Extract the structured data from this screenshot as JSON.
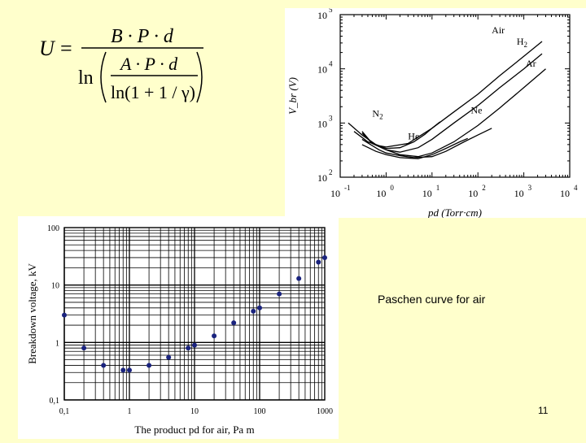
{
  "formula": {
    "lhs": "U",
    "equals": "=",
    "numerator": "B · P · d",
    "ln_outer": "ln",
    "inner_numerator": "A · P · d",
    "inner_denominator": "ln(1 + 1 / γ)"
  },
  "caption": "Paschen curve for air",
  "slide_number": "11",
  "chart_data": [
    {
      "type": "line",
      "title": "",
      "xlabel": "pd (Torr·cm)",
      "ylabel": "V_br (V)",
      "x_scale": "log",
      "y_scale": "log",
      "xlim": [
        0.1,
        10000
      ],
      "ylim": [
        100,
        100000
      ],
      "x_ticks": [
        {
          "base": "10",
          "exp": "-1"
        },
        {
          "base": "10",
          "exp": "0"
        },
        {
          "base": "10",
          "exp": "1"
        },
        {
          "base": "10",
          "exp": "2"
        },
        {
          "base": "10",
          "exp": "3"
        },
        {
          "base": "10",
          "exp": "4"
        }
      ],
      "y_ticks": [
        {
          "base": "10",
          "exp": "2"
        },
        {
          "base": "10",
          "exp": "3"
        },
        {
          "base": "10",
          "exp": "4"
        },
        {
          "base": "10",
          "exp": "5"
        }
      ],
      "series": [
        {
          "name": "Air",
          "x": [
            0.2,
            0.4,
            0.7,
            1,
            3,
            10,
            30,
            100,
            300,
            1000,
            2500
          ],
          "y": [
            700,
            450,
            380,
            360,
            420,
            800,
            1600,
            3400,
            7500,
            17000,
            32000
          ]
        },
        {
          "name": "H2",
          "x": [
            0.3,
            0.5,
            1,
            2,
            5,
            10,
            30,
            100,
            300,
            1000,
            2500
          ],
          "y": [
            700,
            420,
            320,
            290,
            350,
            500,
            1000,
            2100,
            4500,
            10000,
            19000
          ]
        },
        {
          "name": "Ar",
          "x": [
            0.3,
            0.5,
            1,
            2,
            5,
            10,
            30,
            100,
            300,
            1000,
            3000
          ],
          "y": [
            650,
            420,
            320,
            260,
            240,
            280,
            450,
            900,
            1900,
            4500,
            10000
          ]
        },
        {
          "name": "N2",
          "x": [
            0.15,
            0.3,
            0.6,
            1,
            2,
            4,
            7,
            10,
            15
          ],
          "y": [
            1000,
            600,
            400,
            340,
            350,
            450,
            620,
            800,
            1050
          ]
        },
        {
          "name": "He",
          "x": [
            0.3,
            0.6,
            1,
            2,
            5,
            10,
            20,
            40,
            60
          ],
          "y": [
            400,
            300,
            260,
            230,
            220,
            260,
            340,
            450,
            520
          ]
        },
        {
          "name": "Ne",
          "x": [
            0.3,
            0.7,
            1,
            2,
            4,
            10,
            20,
            50,
            100,
            200
          ],
          "y": [
            500,
            320,
            280,
            250,
            230,
            240,
            300,
            450,
            600,
            800
          ]
        }
      ],
      "labels": [
        {
          "text": "Air",
          "x": 200,
          "y": 45000
        },
        {
          "text": "H",
          "sub": "2",
          "x": 700,
          "y": 28000
        },
        {
          "text": "Ar",
          "x": 1100,
          "y": 11000
        },
        {
          "text": "N",
          "sub": "2",
          "x": 0.5,
          "y": 1300
        },
        {
          "text": "He",
          "x": 3,
          "y": 500
        },
        {
          "text": "Ne",
          "x": 70,
          "y": 1500
        }
      ]
    },
    {
      "type": "scatter",
      "title": "",
      "xlabel": "The product pd for air, Pa m",
      "ylabel": "Breakdown voltage, kV",
      "x_scale": "log",
      "y_scale": "log",
      "xlim": [
        0.1,
        1000
      ],
      "ylim": [
        0.1,
        100
      ],
      "grid": true,
      "x_tick_labels": [
        "0,1",
        "1",
        "10",
        "100",
        "1000"
      ],
      "y_tick_labels": [
        "0,1",
        "1",
        "10",
        "100"
      ],
      "points": [
        {
          "x": 0.1,
          "y": 3
        },
        {
          "x": 0.2,
          "y": 0.8
        },
        {
          "x": 0.4,
          "y": 0.4
        },
        {
          "x": 0.8,
          "y": 0.33
        },
        {
          "x": 1,
          "y": 0.33
        },
        {
          "x": 2,
          "y": 0.4
        },
        {
          "x": 4,
          "y": 0.55
        },
        {
          "x": 8,
          "y": 0.8
        },
        {
          "x": 10,
          "y": 0.9
        },
        {
          "x": 20,
          "y": 1.3
        },
        {
          "x": 40,
          "y": 2.2
        },
        {
          "x": 80,
          "y": 3.5
        },
        {
          "x": 100,
          "y": 4
        },
        {
          "x": 200,
          "y": 7
        },
        {
          "x": 400,
          "y": 13
        },
        {
          "x": 800,
          "y": 25
        },
        {
          "x": 1000,
          "y": 30
        }
      ]
    }
  ]
}
